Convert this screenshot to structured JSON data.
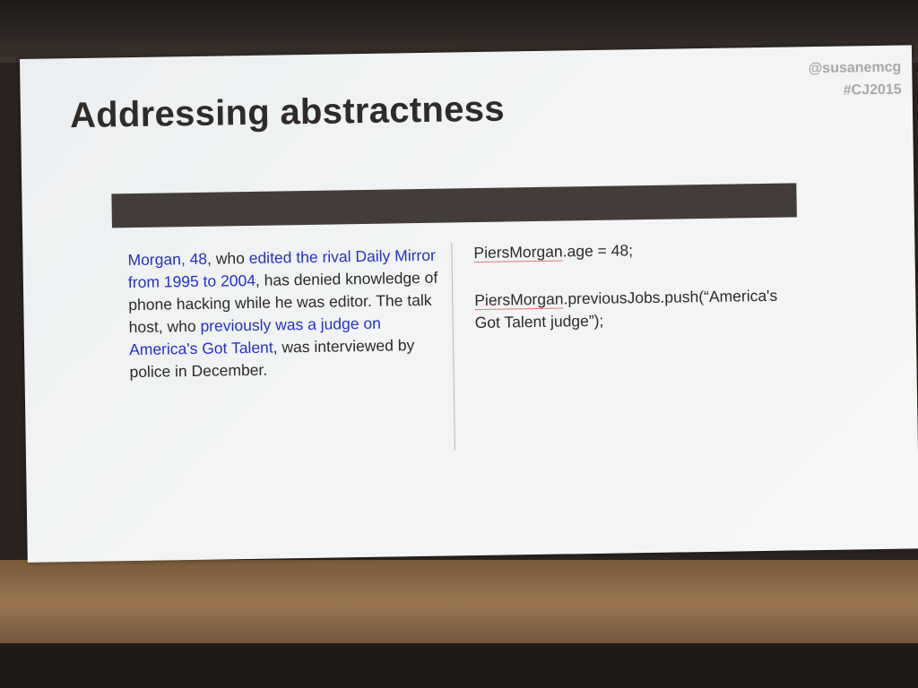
{
  "slide": {
    "title": "Addressing abstractness",
    "handle": "@susanemcg",
    "hashtag": "#CJ2015"
  },
  "left_text": {
    "p1": "Morgan, 48",
    "p2": ", who ",
    "p3": "edited the rival Daily Mirror from 1995 to 2004",
    "p4": ", has denied knowledge of phone hacking while he was editor. The talk host, who ",
    "p5": "previously was a judge on America's Got Talent",
    "p6": ", was interviewed by police in December."
  },
  "code": {
    "line1_obj": "PiersMorgan",
    "line1_rest": ".age = 48;",
    "line2_obj": "PiersMorgan",
    "line2_rest": ".previousJobs.push(“America's Got Talent judge”);"
  },
  "colors": {
    "highlight": "#2630c9",
    "bar": "#433c39",
    "title": "#2f2b29"
  }
}
